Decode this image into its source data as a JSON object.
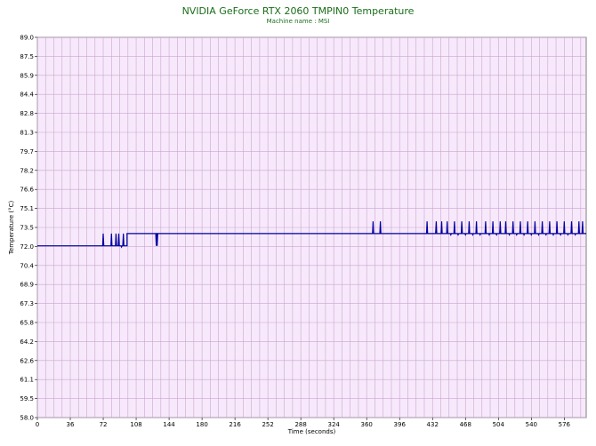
{
  "chart_data": {
    "type": "line",
    "title": "NVIDIA GeForce RTX 2060 TMPIN0 Temperature",
    "subtitle": "Machine name : MSI",
    "xlabel": "Time (seconds)",
    "ylabel": "Temperature (°C)",
    "xlim": [
      0,
      600
    ],
    "ylim": [
      58.0,
      89.0
    ],
    "x_ticks": [
      "0",
      "36",
      "72",
      "108",
      "144",
      "180",
      "216",
      "252",
      "288",
      "324",
      "360",
      "396",
      "432",
      "468",
      "504",
      "540",
      "576"
    ],
    "y_ticks": [
      "58.0",
      "59.5",
      "61.1",
      "62.6",
      "64.2",
      "65.8",
      "67.3",
      "68.9",
      "70.4",
      "72.0",
      "73.5",
      "75.1",
      "76.6",
      "78.2",
      "79.7",
      "81.3",
      "82.8",
      "84.4",
      "85.9",
      "87.5",
      "89.0"
    ],
    "grid": true,
    "series_color": "#0000a0",
    "base_segments": [
      {
        "from": 0,
        "to": 98,
        "value": 72.0
      },
      {
        "from": 98,
        "to": 600,
        "value": 73.0
      }
    ],
    "spikes": [
      {
        "x": 72,
        "value": 73.0
      },
      {
        "x": 81,
        "value": 73.0
      },
      {
        "x": 86,
        "value": 73.0
      },
      {
        "x": 89,
        "value": 73.0
      },
      {
        "x": 92,
        "value": 71.9
      },
      {
        "x": 94,
        "value": 73.0
      },
      {
        "x": 130,
        "value": 72.0
      },
      {
        "x": 131,
        "value": 72.0
      },
      {
        "x": 367,
        "value": 74.0
      },
      {
        "x": 375,
        "value": 74.0
      },
      {
        "x": 426,
        "value": 74.0
      },
      {
        "x": 436,
        "value": 74.0
      },
      {
        "x": 442,
        "value": 74.0
      },
      {
        "x": 448,
        "value": 74.0
      },
      {
        "x": 452,
        "value": 72.9
      },
      {
        "x": 456,
        "value": 74.0
      },
      {
        "x": 460,
        "value": 72.9
      },
      {
        "x": 464,
        "value": 74.0
      },
      {
        "x": 468,
        "value": 72.9
      },
      {
        "x": 472,
        "value": 74.0
      },
      {
        "x": 476,
        "value": 72.9
      },
      {
        "x": 480,
        "value": 74.0
      },
      {
        "x": 484,
        "value": 72.9
      },
      {
        "x": 490,
        "value": 74.0
      },
      {
        "x": 494,
        "value": 72.9
      },
      {
        "x": 498,
        "value": 74.0
      },
      {
        "x": 502,
        "value": 72.9
      },
      {
        "x": 506,
        "value": 74.0
      },
      {
        "x": 512,
        "value": 74.0
      },
      {
        "x": 516,
        "value": 72.9
      },
      {
        "x": 520,
        "value": 74.0
      },
      {
        "x": 524,
        "value": 72.9
      },
      {
        "x": 528,
        "value": 74.0
      },
      {
        "x": 532,
        "value": 72.9
      },
      {
        "x": 536,
        "value": 74.0
      },
      {
        "x": 540,
        "value": 72.9
      },
      {
        "x": 544,
        "value": 74.0
      },
      {
        "x": 548,
        "value": 72.9
      },
      {
        "x": 552,
        "value": 74.0
      },
      {
        "x": 556,
        "value": 72.9
      },
      {
        "x": 560,
        "value": 74.0
      },
      {
        "x": 564,
        "value": 72.9
      },
      {
        "x": 568,
        "value": 74.0
      },
      {
        "x": 572,
        "value": 72.9
      },
      {
        "x": 576,
        "value": 74.0
      },
      {
        "x": 580,
        "value": 72.9
      },
      {
        "x": 584,
        "value": 74.0
      },
      {
        "x": 588,
        "value": 72.9
      },
      {
        "x": 592,
        "value": 74.0
      },
      {
        "x": 596,
        "value": 74.0
      }
    ]
  }
}
